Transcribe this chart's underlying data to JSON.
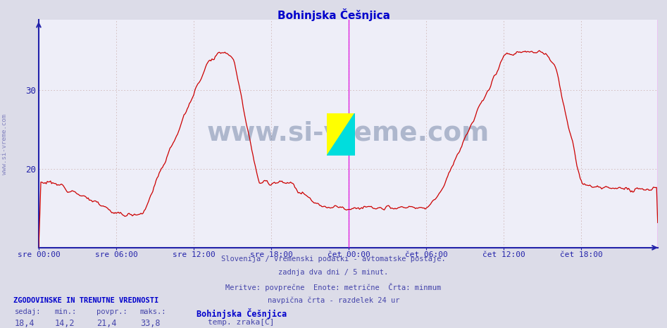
{
  "title": "Bohinjska Češnjica",
  "title_color": "#0000cc",
  "bg_color": "#dcdce8",
  "plot_bg_color": "#eeeef8",
  "grid_color": "#d0b8b8",
  "grid_color2": "#c8c8d8",
  "line_color": "#cc0000",
  "axis_color": "#2222aa",
  "tick_color": "#2222aa",
  "vline_color": "#dd00dd",
  "ymin": 10,
  "ymax": 39,
  "yticks": [
    20,
    30
  ],
  "xtick_labels": [
    "sre 00:00",
    "sre 06:00",
    "sre 12:00",
    "sre 18:00",
    "čet 00:00",
    "čet 06:00",
    "čet 12:00",
    "čet 18:00"
  ],
  "footnote_line1": "Slovenija / vremenski podatki - avtomatske postaje.",
  "footnote_line2": "zadnja dva dni / 5 minut.",
  "footnote_line3": "Meritve: povprečne  Enote: metrične  Črta: minmum",
  "footnote_line4": "navpična črta - razdelek 24 ur",
  "footnote_color": "#4444aa",
  "legend_title": "ZGODOVINSKE IN TRENUTNE VREDNOSTI",
  "legend_labels": [
    "sedaj:",
    "min.:",
    "povpr.:",
    "maks.:"
  ],
  "legend_values": [
    "18,4",
    "14,2",
    "21,4",
    "33,8"
  ],
  "station_name": "Bohinjska Češnjica",
  "series_label": "temp. zraka[C]",
  "watermark_text": "www.si-vreme.com",
  "watermark_color": "#1a3a6a",
  "watermark_alpha": 0.3,
  "left_label": "www.si-vreme.com",
  "left_label_color": "#5555aa",
  "n_per_day": 288,
  "points_per_hour": 12
}
